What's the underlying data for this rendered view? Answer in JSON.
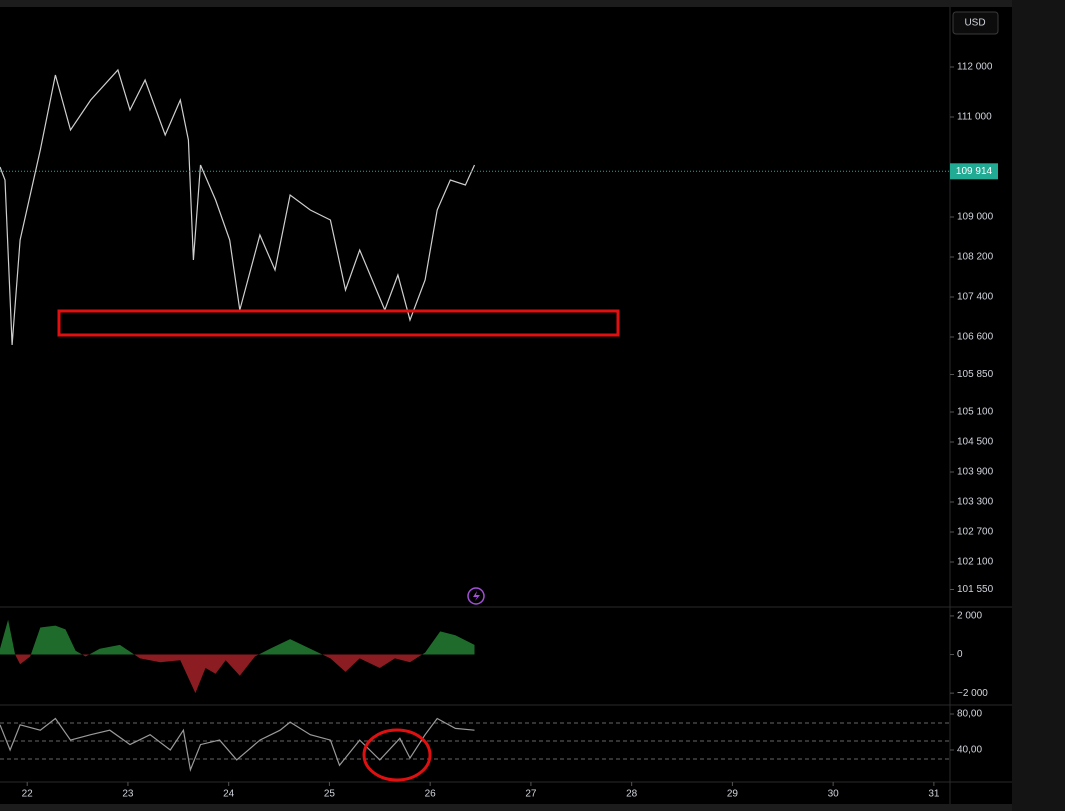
{
  "header": {
    "currency": "USD"
  },
  "chart_data": [
    {
      "type": "line",
      "x": [
        21.73,
        21.78,
        21.85,
        21.93,
        22.13,
        22.28,
        22.43,
        22.63,
        22.9,
        23.02,
        23.17,
        23.37,
        23.52,
        23.6,
        23.65,
        23.72,
        23.87,
        24.01,
        24.11,
        24.31,
        24.46,
        24.61,
        24.81,
        25.01,
        25.16,
        25.3,
        25.55,
        25.68,
        25.8,
        25.95,
        26.07,
        26.2,
        26.35,
        26.44
      ],
      "values": [
        110000,
        109740,
        106440,
        108540,
        110340,
        111840,
        110740,
        111340,
        111940,
        111140,
        111740,
        110640,
        111340,
        110540,
        108140,
        110040,
        109340,
        108540,
        107140,
        108640,
        107940,
        109440,
        109140,
        108940,
        107540,
        108340,
        107140,
        107840,
        106940,
        107740,
        109140,
        109740,
        109640,
        110040
      ],
      "color": "#cfcfcf",
      "xlim": [
        21.73,
        31.16
      ],
      "ylim": [
        101200,
        113340
      ],
      "yticks": [
        {
          "value": 112000,
          "label": "112 000"
        },
        {
          "value": 111000,
          "label": "111 000"
        },
        {
          "value": 109000,
          "label": "109 000"
        },
        {
          "value": 108200,
          "label": "108 200"
        },
        {
          "value": 107400,
          "label": "107 400"
        },
        {
          "value": 106600,
          "label": "106 600"
        },
        {
          "value": 105850,
          "label": "105 850"
        },
        {
          "value": 105100,
          "label": "105 100"
        },
        {
          "value": 104500,
          "label": "104 500"
        },
        {
          "value": 103900,
          "label": "103 900"
        },
        {
          "value": 103300,
          "label": "103 300"
        },
        {
          "value": 102700,
          "label": "102 700"
        },
        {
          "value": 102100,
          "label": "102 100"
        },
        {
          "value": 101550,
          "label": "101 550"
        }
      ],
      "last_price": {
        "value": 109914,
        "label": "109 914"
      },
      "last_price_color": "#22ab94"
    },
    {
      "type": "area",
      "x": [
        21.73,
        21.81,
        21.88,
        21.93,
        22.03,
        22.13,
        22.28,
        22.38,
        22.48,
        22.58,
        22.72,
        22.92,
        23.12,
        23.32,
        23.52,
        23.67,
        23.77,
        23.87,
        23.97,
        24.11,
        24.26,
        24.41,
        24.61,
        24.81,
        25.01,
        25.16,
        25.3,
        25.5,
        25.65,
        25.8,
        25.95,
        26.1,
        26.25,
        26.44
      ],
      "values": [
        300,
        1800,
        0,
        -500,
        -100,
        1400,
        1500,
        1300,
        200,
        -100,
        300,
        500,
        -200,
        -400,
        -300,
        -2000,
        -700,
        -1000,
        -300,
        -1100,
        -100,
        300,
        800,
        300,
        -200,
        -900,
        -200,
        -700,
        -200,
        -400,
        100,
        1200,
        1000,
        500
      ],
      "positive_color": "#1e6b2b",
      "negative_color": "#8b1c22",
      "xlim": [
        21.73,
        31.16
      ],
      "ylim": [
        -2615,
        2462
      ],
      "yticks": [
        {
          "value": 2000,
          "label": "2 000"
        },
        0,
        {
          "value": -2000,
          "label": "−2 000"
        }
      ]
    },
    {
      "type": "line",
      "x": [
        21.73,
        21.83,
        21.93,
        22.13,
        22.28,
        22.43,
        22.63,
        22.82,
        23.02,
        23.22,
        23.42,
        23.55,
        23.62,
        23.72,
        23.91,
        24.08,
        24.31,
        24.51,
        24.61,
        24.81,
        25.01,
        25.1,
        25.3,
        25.5,
        25.7,
        25.8,
        25.95,
        26.07,
        26.25,
        26.44
      ],
      "values": [
        68,
        40,
        68,
        62,
        75,
        51,
        57,
        62,
        46,
        57,
        40,
        62,
        18,
        46,
        51,
        29,
        51,
        62,
        71,
        57,
        51,
        23,
        51,
        29,
        53,
        31,
        57,
        75,
        64,
        62
      ],
      "color": "#9a9a9a",
      "xlim": [
        21.73,
        31.16
      ],
      "ylim": [
        4.4,
        87.8
      ],
      "yticks": [
        {
          "value": 80,
          "label": "80,00"
        },
        {
          "value": 40,
          "label": "40,00"
        }
      ],
      "reference_lines": [
        70,
        50,
        30
      ],
      "xticks": [
        22,
        23,
        24,
        25,
        26,
        27,
        28,
        29,
        30,
        31
      ]
    }
  ]
}
